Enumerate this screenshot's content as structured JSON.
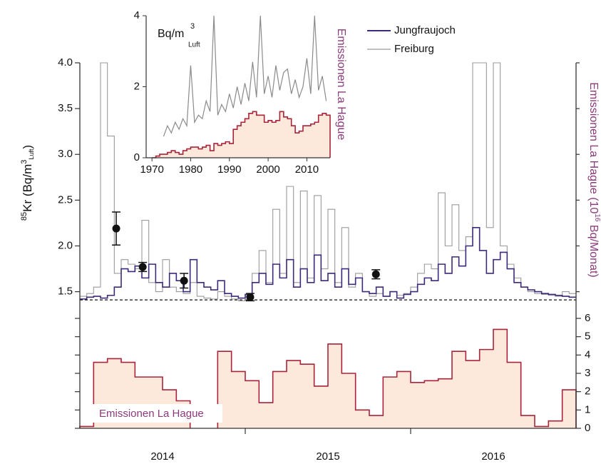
{
  "chart_data": [
    {
      "type": "step",
      "ylabel": {
        "iso": "85",
        "text": "Kr (Bq/m",
        "sup": "3",
        "sub": "Luft",
        "close": ")"
      },
      "y2label": {
        "text": "Emissionen La Hague (10",
        "sup": "16",
        "close": " Bq/Monat)"
      },
      "xlim": [
        2014,
        2017
      ],
      "xticks": [
        2015,
        2016
      ],
      "xlabels": [
        {
          "value": 2014.5,
          "label": "2014"
        },
        {
          "value": 2015.5,
          "label": "2015"
        },
        {
          "value": 2016.5,
          "label": "2016"
        }
      ],
      "ylim": [
        1.38,
        4.0
      ],
      "yticks": [
        1.5,
        {
          "value": 2,
          "label": "2.0"
        },
        2.5,
        {
          "value": 3,
          "label": "3.0"
        },
        3.5,
        {
          "value": 4,
          "label": "4.0"
        }
      ],
      "y2lim": [
        0,
        6
      ],
      "y2ticks": [
        0,
        1,
        2,
        3,
        4,
        5,
        6
      ],
      "reference_line": 1.41,
      "series": [
        {
          "name": "Jungfraujoch",
          "color": "#3d2a7a",
          "values": [
            1.42,
            1.44,
            1.45,
            1.43,
            1.46,
            1.55,
            1.75,
            1.72,
            1.78,
            1.65,
            1.8,
            1.6,
            1.55,
            1.7,
            1.62,
            1.5,
            1.85,
            1.6,
            1.55,
            1.52,
            1.62,
            1.48,
            1.45,
            1.43,
            1.47,
            1.6,
            1.7,
            1.58,
            1.8,
            1.65,
            1.85,
            1.55,
            1.75,
            1.6,
            1.9,
            1.62,
            1.7,
            1.55,
            1.75,
            1.58,
            1.65,
            1.5,
            1.48,
            1.55,
            1.45,
            1.5,
            1.43,
            1.47,
            1.5,
            1.58,
            1.65,
            1.62,
            1.8,
            1.7,
            1.88,
            1.78,
            2.0,
            2.2,
            1.95,
            1.7,
            1.85,
            1.93,
            1.75,
            1.6,
            1.55,
            1.52,
            1.5,
            1.48,
            1.47,
            1.46,
            1.45,
            1.44
          ]
        },
        {
          "name": "Freiburg",
          "color": "#9a9a9a",
          "values": [
            1.45,
            1.48,
            1.55,
            4.0,
            3.2,
            1.7,
            1.85,
            1.8,
            1.75,
            2.28,
            1.6,
            1.5,
            1.85,
            1.55,
            1.5,
            1.48,
            1.6,
            1.45,
            1.43,
            1.42,
            1.5,
            1.45,
            1.42,
            1.4,
            1.45,
            1.7,
            1.95,
            1.6,
            2.4,
            1.7,
            2.65,
            1.6,
            2.6,
            1.65,
            2.55,
            1.75,
            2.4,
            1.6,
            2.2,
            1.55,
            1.7,
            1.5,
            1.45,
            1.48,
            1.45,
            1.5,
            1.46,
            1.48,
            1.55,
            1.7,
            1.8,
            1.75,
            2.58,
            2.0,
            2.45,
            1.95,
            2.1,
            4.0,
            4.0,
            2.2,
            4.0,
            2.0,
            1.8,
            1.65,
            1.55,
            1.5,
            1.48,
            1.47,
            1.46,
            1.45,
            1.5,
            1.48
          ]
        },
        {
          "name": "Emissionen La Hague",
          "axis": "y2",
          "color": "#a8243a",
          "fill": "#fde8dc",
          "values": [
            0.1,
            3.6,
            3.8,
            3.6,
            2.8,
            2.8,
            2.1,
            1.5,
            null,
            null,
            4.2,
            3.1,
            2.6,
            1.4,
            3.1,
            3.7,
            3.5,
            2.3,
            4.6,
            3.0,
            1.0,
            0.7,
            2.8,
            3.1,
            2.5,
            2.6,
            2.7,
            4.2,
            3.7,
            4.3,
            5.4,
            3.6,
            0.7,
            0.1,
            0.4,
            2.1
          ]
        }
      ],
      "points": {
        "color": "#111111",
        "x": [
          2014.22,
          2014.38,
          2014.63,
          2015.03,
          2015.79
        ],
        "values": [
          2.19,
          1.77,
          1.62,
          1.44,
          1.69
        ],
        "errors": [
          0.18,
          0.05,
          0.08,
          0.04,
          0.05
        ]
      }
    },
    {
      "type": "line",
      "ylabel": {
        "text": "Bq/m",
        "sup": "3",
        "sub": "Luft"
      },
      "xlim": [
        1968.5,
        2016
      ],
      "xticks": [
        1970,
        1980,
        1990,
        2000,
        2010
      ],
      "ylim": [
        0,
        4
      ],
      "yticks": [
        0,
        2,
        4
      ],
      "x": [
        1970,
        1971,
        1972,
        1973,
        1974,
        1975,
        1976,
        1977,
        1978,
        1979,
        1980,
        1981,
        1982,
        1983,
        1984,
        1985,
        1986,
        1987,
        1988,
        1989,
        1990,
        1991,
        1992,
        1993,
        1994,
        1995,
        1996,
        1997,
        1998,
        1999,
        2000,
        2001,
        2002,
        2003,
        2004,
        2005,
        2006,
        2007,
        2008,
        2009,
        2010,
        2011,
        2012,
        2013,
        2014,
        2015
      ],
      "series": [
        {
          "color": "#8a8a8a",
          "values": [
            null,
            null,
            null,
            0.6,
            0.9,
            0.7,
            1.0,
            0.8,
            1.1,
            0.9,
            2.6,
            1.0,
            1.2,
            1.1,
            1.6,
            1.3,
            4.0,
            1.2,
            1.5,
            1.3,
            1.8,
            1.4,
            2.0,
            1.5,
            2.1,
            1.6,
            2.7,
            1.7,
            4.0,
            1.8,
            2.3,
            1.7,
            2.6,
            1.9,
            2.4,
            2.5,
            1.8,
            2.2,
            1.7,
            2.0,
            2.8,
            1.8,
            4.0,
            1.9,
            2.3,
            1.6
          ]
        },
        {
          "name": "Emissionen La Hague",
          "color": "#a8243a",
          "fill": "#fde8dc",
          "values": [
            0,
            0.05,
            0.1,
            0.1,
            0.15,
            0.2,
            0.15,
            0.1,
            0.2,
            0.25,
            0.3,
            0.3,
            0.25,
            0.3,
            0.35,
            0.2,
            0.4,
            0.35,
            0.4,
            0.45,
            0.4,
            0.8,
            0.9,
            1.0,
            1.1,
            1.25,
            1.3,
            1.2,
            1.2,
            1.0,
            1.05,
            1.0,
            1.05,
            1.3,
            1.15,
            1.1,
            0.9,
            0.7,
            0.75,
            0.9,
            0.9,
            0.95,
            1.0,
            1.2,
            1.25,
            1.2
          ]
        }
      ]
    }
  ]
}
